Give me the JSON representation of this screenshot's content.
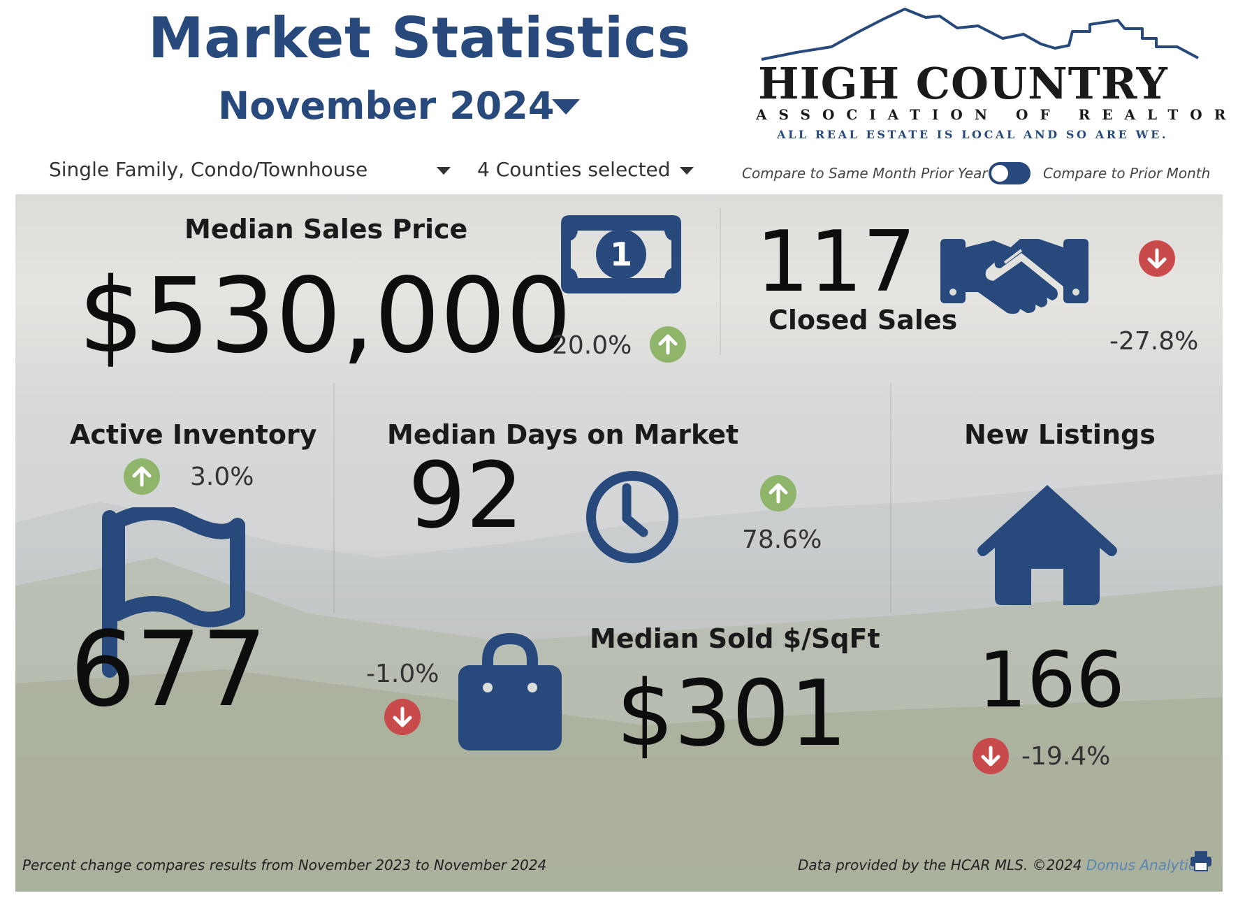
{
  "header": {
    "title": "Market Statistics",
    "month": "November 2024"
  },
  "logo": {
    "name": "HIGH COUNTRY",
    "association": "ASSOCIATION OF REALTORS",
    "tagline": "ALL REAL ESTATE IS LOCAL AND SO ARE WE."
  },
  "filters": {
    "property_type": "Single Family, Condo/Townhouse",
    "counties": "4 Counties selected"
  },
  "compare": {
    "left_label": "Compare to Same Month Prior Year",
    "right_label": "Compare to Prior Month"
  },
  "metrics": {
    "median_sales_price": {
      "label": "Median Sales Price",
      "value": "$530,000",
      "change": "20.0%",
      "direction": "up"
    },
    "closed_sales": {
      "label": "Closed Sales",
      "value": "117",
      "change": "-27.8%",
      "direction": "down"
    },
    "active_inventory": {
      "label": "Active Inventory",
      "value": "677",
      "change": "3.0%",
      "direction": "up"
    },
    "median_days": {
      "label": "Median Days on Market",
      "value": "92",
      "change": "78.6%",
      "direction": "up"
    },
    "new_listings": {
      "label": "New Listings",
      "value": "166",
      "change": "-19.4%",
      "direction": "down"
    },
    "median_sqft": {
      "label": "Median Sold $/SqFt",
      "value": "$301",
      "change": "-1.0%",
      "direction": "down"
    }
  },
  "footer": {
    "note": "Percent change compares results from November 2023 to November 2024",
    "credit": "Data provided by the HCAR MLS. ©2024",
    "credit_link": "Domus Analytics"
  },
  "colors": {
    "brand_blue": "#27497c",
    "up_green": "#8fb56b",
    "down_red": "#c84a4a"
  },
  "icons": [
    "dollar-bill-icon",
    "handshake-icon",
    "flag-icon",
    "clock-icon",
    "house-icon",
    "shopping-bag-icon",
    "printer-icon",
    "arrow-up-icon",
    "arrow-down-icon"
  ]
}
